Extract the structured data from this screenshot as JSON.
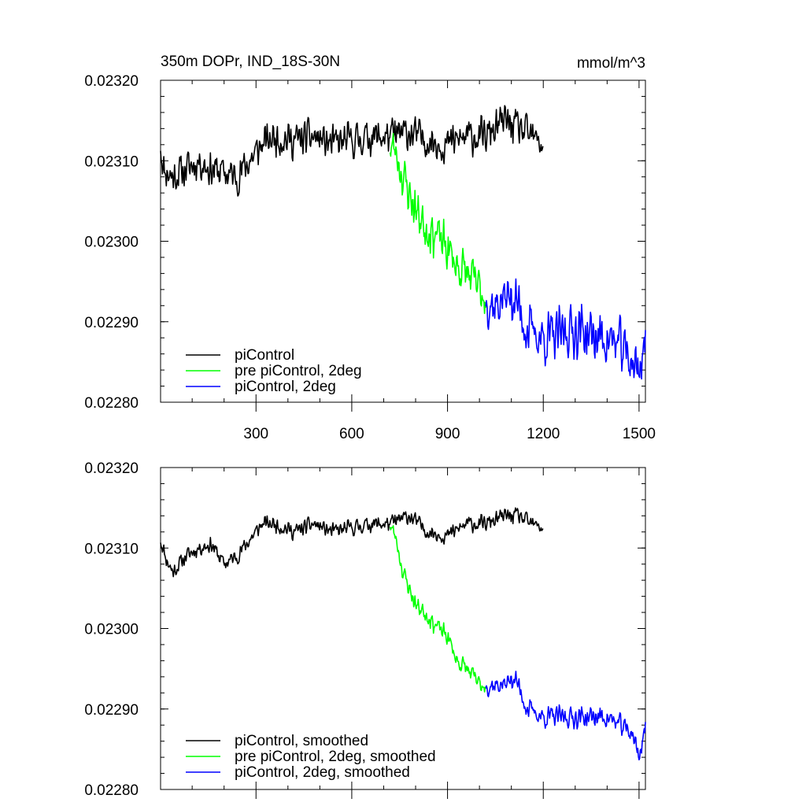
{
  "colors": {
    "pi": "#000000",
    "pre": "#00ff00",
    "two": "#0000ff"
  },
  "chart_data": [
    {
      "type": "line",
      "title": "350m DOPr, IND_18S-30N",
      "units": "mmol/m^3",
      "xlabel": "",
      "ylabel": "",
      "xlim": [
        1,
        1520
      ],
      "ylim": [
        0.0228,
        0.0232
      ],
      "xticks": [
        300,
        600,
        900,
        1200,
        1500
      ],
      "xtick_labels": [
        "300",
        "600",
        "900",
        "1200",
        "1500"
      ],
      "yticks": [
        0.0232,
        0.0231,
        0.023,
        0.0229,
        0.0228
      ],
      "ytick_labels": [
        "0.02320",
        "0.02310",
        "0.02300",
        "0.02290",
        "0.02280"
      ],
      "legend": [
        "piControl",
        "pre piControl, 2deg",
        "piControl, 2deg"
      ],
      "legend_position": "bottom-left",
      "series": [
        {
          "name": "piControl",
          "color_key": "pi",
          "noise": 2.7e-05,
          "seed": 11,
          "points": [
            [
              1,
              0.02312
            ],
            [
              10,
              0.02309
            ],
            [
              40,
              0.02308
            ],
            [
              80,
              0.02309
            ],
            [
              120,
              0.0231
            ],
            [
              160,
              0.02309
            ],
            [
              200,
              0.023085
            ],
            [
              240,
              0.02308
            ],
            [
              280,
              0.0231
            ],
            [
              320,
              0.02312
            ],
            [
              360,
              0.02313
            ],
            [
              420,
              0.023125
            ],
            [
              480,
              0.02313
            ],
            [
              540,
              0.02312
            ],
            [
              600,
              0.023125
            ],
            [
              660,
              0.02313
            ],
            [
              720,
              0.02313
            ],
            [
              780,
              0.023135
            ],
            [
              840,
              0.023125
            ],
            [
              900,
              0.02312
            ],
            [
              960,
              0.02313
            ],
            [
              1020,
              0.02313
            ],
            [
              1080,
              0.02315
            ],
            [
              1120,
              0.02314
            ],
            [
              1160,
              0.02313
            ],
            [
              1200,
              0.02312
            ]
          ]
        },
        {
          "name": "pre piControl, 2deg",
          "color_key": "pre",
          "noise": 3.5e-05,
          "seed": 23,
          "points": [
            [
              720,
              0.02312
            ],
            [
              740,
              0.02311
            ],
            [
              760,
              0.02308
            ],
            [
              780,
              0.02306
            ],
            [
              800,
              0.02304
            ],
            [
              830,
              0.02302
            ],
            [
              860,
              0.02301
            ],
            [
              900,
              0.02299
            ],
            [
              930,
              0.02297
            ],
            [
              960,
              0.02296
            ],
            [
              1000,
              0.02294
            ],
            [
              1020,
              0.02293
            ]
          ]
        },
        {
          "name": "piControl, 2deg",
          "color_key": "two",
          "noise": 4e-05,
          "seed": 37,
          "points": [
            [
              1020,
              0.02293
            ],
            [
              1050,
              0.02292
            ],
            [
              1080,
              0.02293
            ],
            [
              1110,
              0.02293
            ],
            [
              1150,
              0.02289
            ],
            [
              1200,
              0.02288
            ],
            [
              1240,
              0.02288
            ],
            [
              1280,
              0.02289
            ],
            [
              1320,
              0.02289
            ],
            [
              1360,
              0.02288
            ],
            [
              1400,
              0.02288
            ],
            [
              1440,
              0.02287
            ],
            [
              1480,
              0.02285
            ],
            [
              1500,
              0.02284
            ],
            [
              1520,
              0.02288
            ]
          ]
        }
      ]
    },
    {
      "type": "line",
      "title": "",
      "units": "",
      "xlabel": "",
      "ylabel": "",
      "xlim": [
        1,
        1520
      ],
      "ylim": [
        0.0228,
        0.0232
      ],
      "xticks": [
        300,
        600,
        900,
        1200,
        1500
      ],
      "yticks": [
        0.0232,
        0.0231,
        0.023,
        0.0229,
        0.0228
      ],
      "ytick_labels": [
        "0.02320",
        "0.02310",
        "0.02300",
        "0.02290",
        "0.02280"
      ],
      "legend": [
        "piControl, smoothed",
        "pre piControl, 2deg, smoothed",
        "piControl, 2deg, smoothed"
      ],
      "legend_position": "bottom-left",
      "series": [
        {
          "name": "piControl, smoothed",
          "color_key": "pi",
          "noise": 1.2e-05,
          "seed": 11,
          "points": [
            [
              1,
              0.02311
            ],
            [
              20,
              0.023085
            ],
            [
              40,
              0.02307
            ],
            [
              80,
              0.02309
            ],
            [
              120,
              0.0231
            ],
            [
              160,
              0.023105
            ],
            [
              200,
              0.02308
            ],
            [
              240,
              0.02309
            ],
            [
              280,
              0.02311
            ],
            [
              320,
              0.02313
            ],
            [
              360,
              0.02313
            ],
            [
              420,
              0.02312
            ],
            [
              480,
              0.02313
            ],
            [
              540,
              0.02312
            ],
            [
              600,
              0.023125
            ],
            [
              660,
              0.02313
            ],
            [
              720,
              0.02313
            ],
            [
              780,
              0.02314
            ],
            [
              840,
              0.02312
            ],
            [
              900,
              0.023115
            ],
            [
              960,
              0.02313
            ],
            [
              1020,
              0.02313
            ],
            [
              1080,
              0.02314
            ],
            [
              1120,
              0.02314
            ],
            [
              1160,
              0.02313
            ],
            [
              1200,
              0.023125
            ]
          ]
        },
        {
          "name": "pre piControl, 2deg, smoothed",
          "color_key": "pre",
          "noise": 1.4e-05,
          "seed": 23,
          "points": [
            [
              720,
              0.02313
            ],
            [
              740,
              0.02311
            ],
            [
              760,
              0.02307
            ],
            [
              780,
              0.02305
            ],
            [
              800,
              0.02303
            ],
            [
              830,
              0.02302
            ],
            [
              860,
              0.023005
            ],
            [
              900,
              0.02299
            ],
            [
              930,
              0.02296
            ],
            [
              960,
              0.02295
            ],
            [
              1000,
              0.02293
            ],
            [
              1020,
              0.02293
            ]
          ]
        },
        {
          "name": "piControl, 2deg, smoothed",
          "color_key": "two",
          "noise": 1.6e-05,
          "seed": 37,
          "points": [
            [
              1020,
              0.02293
            ],
            [
              1050,
              0.02293
            ],
            [
              1080,
              0.02293
            ],
            [
              1110,
              0.02294
            ],
            [
              1150,
              0.0229
            ],
            [
              1200,
              0.02289
            ],
            [
              1240,
              0.02289
            ],
            [
              1280,
              0.02289
            ],
            [
              1320,
              0.02289
            ],
            [
              1360,
              0.02289
            ],
            [
              1400,
              0.02289
            ],
            [
              1440,
              0.02288
            ],
            [
              1480,
              0.02287
            ],
            [
              1500,
              0.02284
            ],
            [
              1520,
              0.02288
            ]
          ]
        }
      ]
    }
  ]
}
